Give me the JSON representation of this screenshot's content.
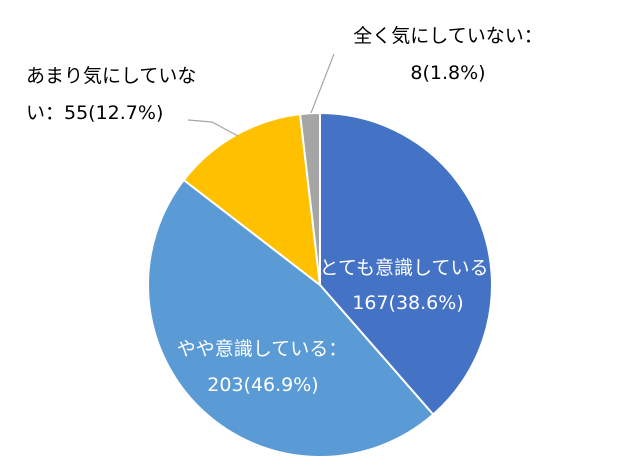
{
  "chart_data": {
    "type": "pie",
    "title": "",
    "start_angle_deg": 0,
    "direction": "clockwise",
    "slices": [
      {
        "label": "とても意識している",
        "value": 167,
        "percent": 38.6,
        "color": "#4472C4",
        "label_line1": "とても意識している",
        "label_line2": "167(38.6%)"
      },
      {
        "label": "やや意識している",
        "value": 203,
        "percent": 46.9,
        "color": "#5B9BD5",
        "label_line1": "やや意識している：",
        "label_line2": "203(46.9%)"
      },
      {
        "label": "あまり気にしていない",
        "value": 55,
        "percent": 12.7,
        "color": "#FFC000",
        "label_line1": "あまり気にしていな",
        "label_line2": "い：55(12.7%)"
      },
      {
        "label": "全く気にしていない",
        "value": 8,
        "percent": 1.8,
        "color": "#A5A5A5",
        "label_line1": "全く気にしていない：",
        "label_line2": "8(1.8%)"
      }
    ]
  }
}
